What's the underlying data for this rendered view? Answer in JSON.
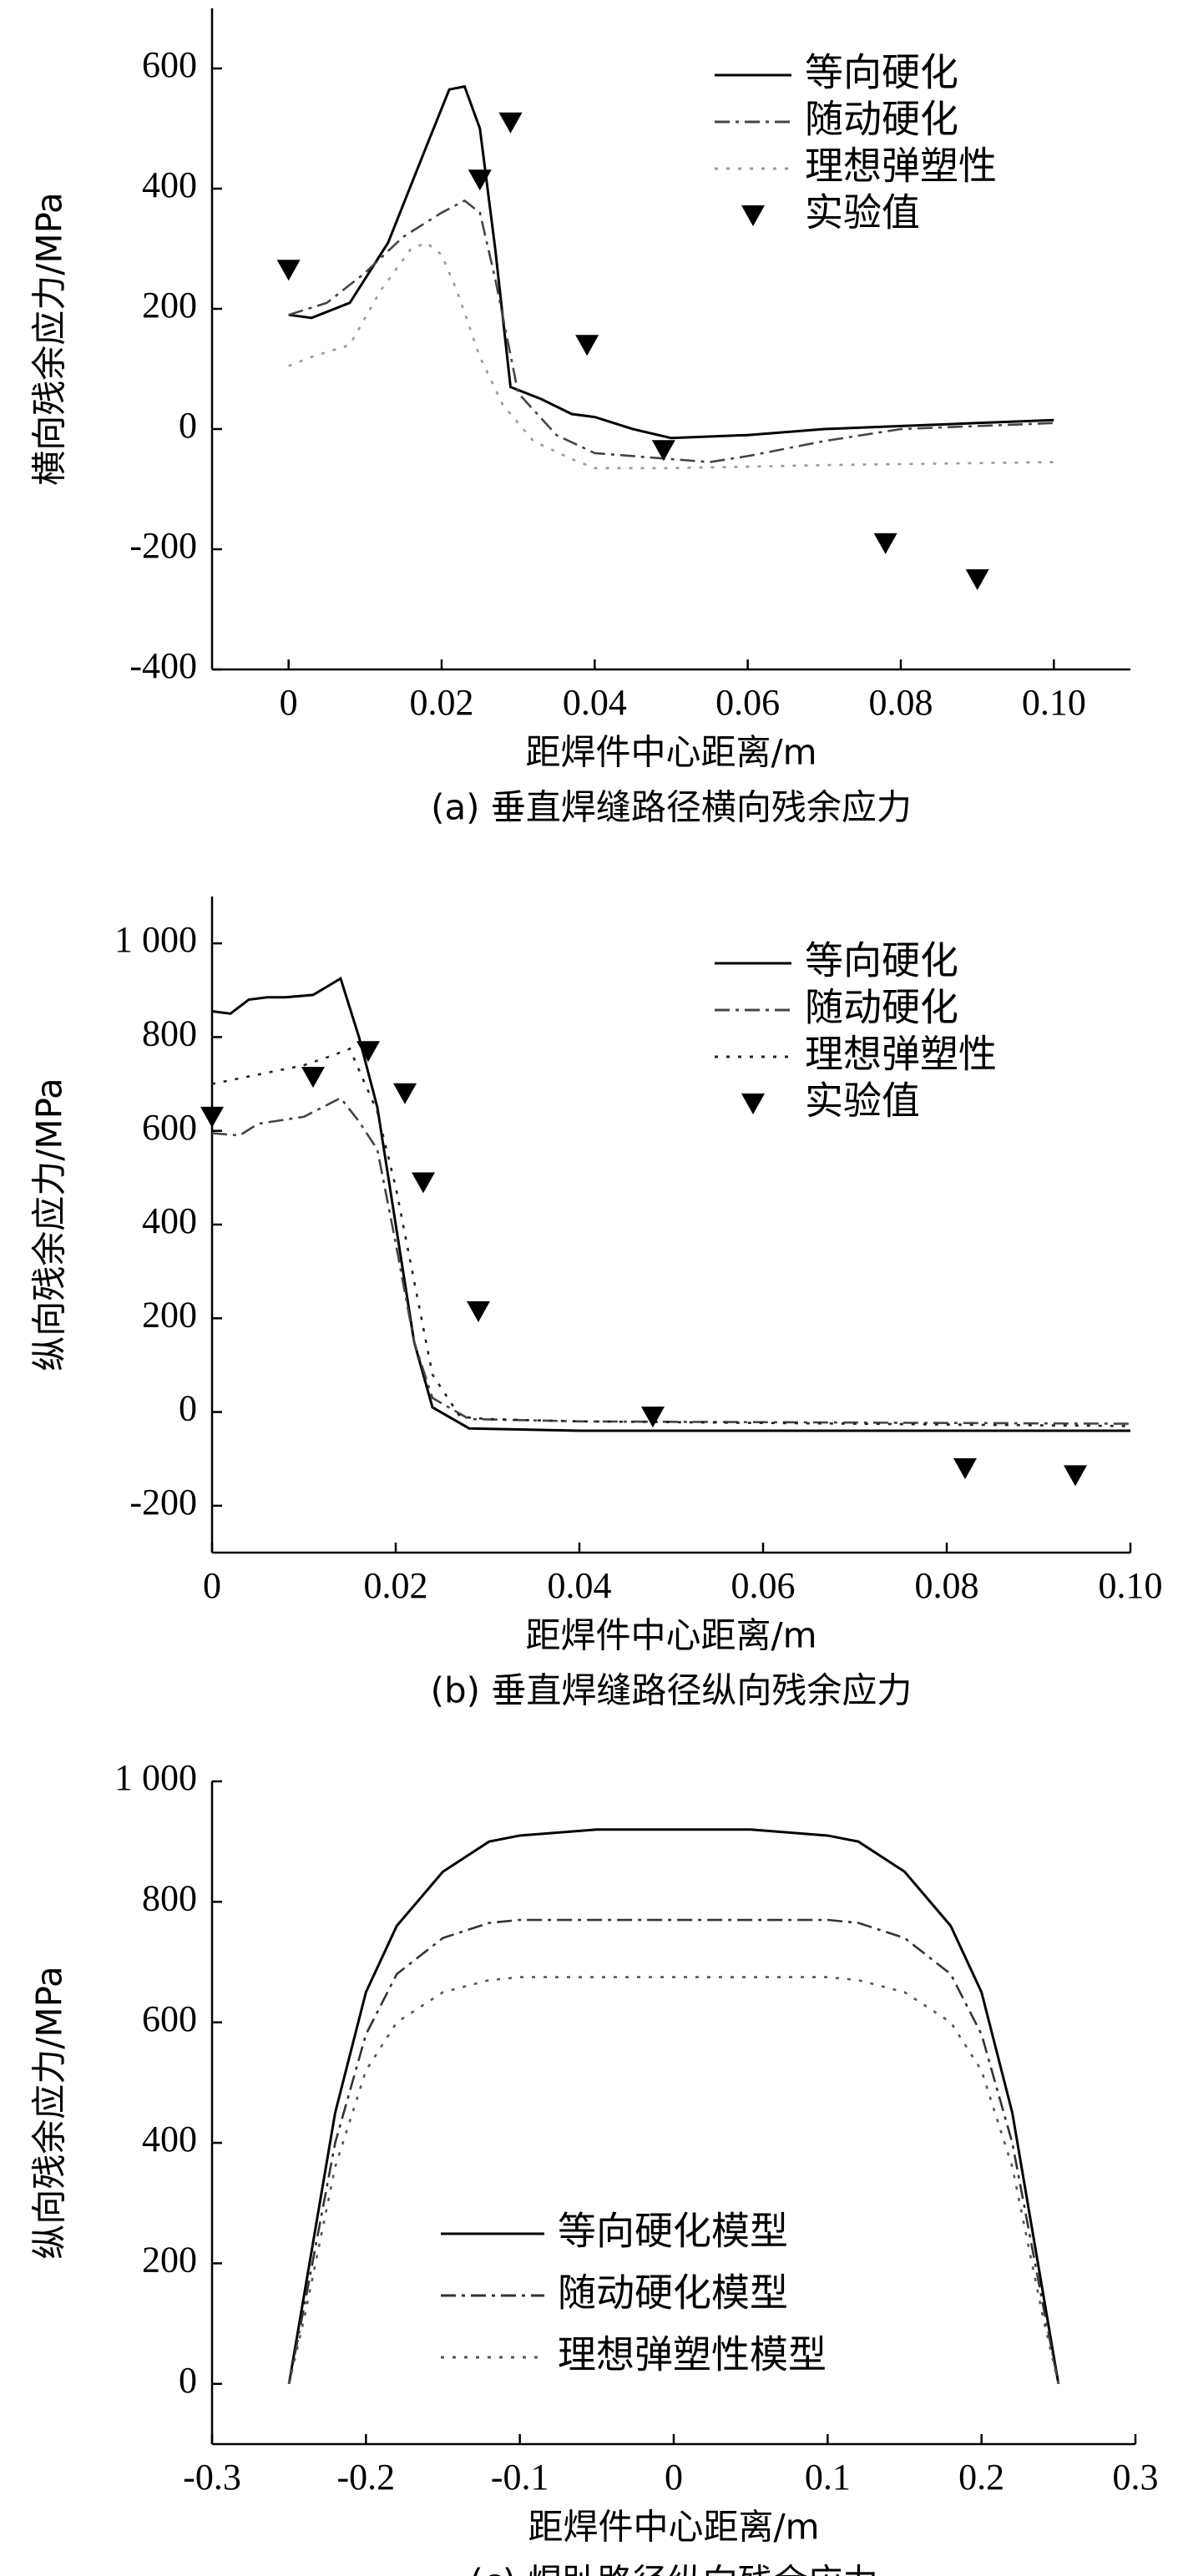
{
  "chart_data": [
    {
      "type": "line",
      "caption": "(a) 垂直焊缝路径横向残余应力",
      "xlabel": "距焊件中心距离/m",
      "ylabel": "横向残余应力/MPa",
      "xlim": [
        -0.01,
        0.11
      ],
      "ylim": [
        -400,
        700
      ],
      "xticks": [
        0,
        0.02,
        0.04,
        0.06,
        0.08,
        {
          "value": 0.1,
          "label": "0.10"
        }
      ],
      "yticks": [
        -400,
        -200,
        0,
        200,
        400,
        600
      ],
      "legend": "upper right",
      "series": [
        {
          "name": "等向硬化",
          "color": "#000000",
          "style": "solid",
          "x": [
            0,
            0.003,
            0.008,
            0.013,
            0.018,
            0.021,
            0.023,
            0.025,
            0.027,
            0.029,
            0.033,
            0.037,
            0.04,
            0.045,
            0.05,
            0.06,
            0.07,
            0.08,
            0.09,
            0.1
          ],
          "values": [
            190,
            185,
            210,
            310,
            470,
            565,
            570,
            500,
            300,
            70,
            50,
            25,
            20,
            0,
            -15,
            -10,
            0,
            5,
            10,
            15
          ]
        },
        {
          "name": "随动硬化",
          "color": "#444444",
          "style": "dashdot",
          "x": [
            0,
            0.005,
            0.01,
            0.015,
            0.02,
            0.023,
            0.025,
            0.027,
            0.03,
            0.035,
            0.04,
            0.05,
            0.055,
            0.06,
            0.07,
            0.08,
            0.09,
            0.1
          ],
          "values": [
            190,
            210,
            260,
            320,
            360,
            380,
            360,
            250,
            60,
            -10,
            -40,
            -50,
            -55,
            -45,
            -20,
            0,
            5,
            10
          ]
        },
        {
          "name": "理想弹塑性",
          "color": "#999999",
          "style": "dotted",
          "x": [
            0,
            0.003,
            0.008,
            0.012,
            0.016,
            0.018,
            0.02,
            0.022,
            0.025,
            0.028,
            0.032,
            0.037,
            0.04,
            0.05,
            0.07,
            0.1
          ],
          "values": [
            105,
            120,
            140,
            230,
            300,
            310,
            290,
            230,
            120,
            40,
            -20,
            -50,
            -65,
            -65,
            -60,
            -55
          ]
        },
        {
          "name": "实验值",
          "color": "#000000",
          "style": "marker",
          "x": [
            0,
            0.025,
            0.029,
            0.039,
            0.049,
            0.078,
            0.09
          ],
          "values": [
            265,
            415,
            510,
            140,
            -35,
            -190,
            -250
          ]
        }
      ]
    },
    {
      "type": "line",
      "caption": "(b) 垂直焊缝路径纵向残余应力",
      "xlabel": "距焊件中心距离/m",
      "ylabel": "纵向残余应力/MPa",
      "xlim": [
        0,
        0.1
      ],
      "ylim": [
        -300,
        1100
      ],
      "xticks": [
        0,
        0.02,
        0.04,
        0.06,
        0.08,
        {
          "value": 0.1,
          "label": "0.10"
        }
      ],
      "yticks": [
        -200,
        0,
        200,
        400,
        600,
        800,
        {
          "value": 1000,
          "label": "1 000"
        }
      ],
      "legend": "upper right",
      "series": [
        {
          "name": "等向硬化",
          "color": "#000000",
          "style": "solid",
          "x": [
            0,
            0.002,
            0.004,
            0.006,
            0.008,
            0.011,
            0.014,
            0.016,
            0.018,
            0.02,
            0.022,
            0.024,
            0.028,
            0.04,
            0.1
          ],
          "values": [
            855,
            850,
            880,
            885,
            885,
            890,
            925,
            800,
            650,
            400,
            150,
            10,
            -35,
            -40,
            -40
          ]
        },
        {
          "name": "随动硬化",
          "color": "#444444",
          "style": "dashdot",
          "x": [
            0,
            0.003,
            0.005,
            0.01,
            0.014,
            0.016,
            0.018,
            0.02,
            0.022,
            0.024,
            0.028,
            0.04,
            0.1
          ],
          "values": [
            595,
            590,
            615,
            630,
            670,
            620,
            560,
            360,
            150,
            30,
            -15,
            -20,
            -25
          ]
        },
        {
          "name": "理想弹塑性",
          "color": "#222222",
          "style": "dotted",
          "x": [
            0,
            0.005,
            0.01,
            0.013,
            0.015,
            0.018,
            0.02,
            0.022,
            0.024,
            0.027,
            0.03,
            0.04,
            0.1
          ],
          "values": [
            700,
            720,
            740,
            760,
            775,
            640,
            480,
            280,
            80,
            -10,
            -15,
            -20,
            -30
          ]
        },
        {
          "name": "实验值",
          "color": "#000000",
          "style": "marker",
          "x": [
            0,
            0.011,
            0.017,
            0.021,
            0.023,
            0.029,
            0.048,
            0.082,
            0.094
          ],
          "values": [
            630,
            715,
            770,
            680,
            490,
            215,
            -10,
            -120,
            -135
          ]
        }
      ]
    },
    {
      "type": "line",
      "caption": "(c) 焊趾路径纵向残余应力",
      "xlabel": "距焊件中心距离/m",
      "ylabel": "纵向残余应力/MPa",
      "xlim": [
        -0.3,
        0.3
      ],
      "ylim": [
        -100,
        1000
      ],
      "xticks": [
        -0.3,
        -0.2,
        -0.1,
        0,
        0.1,
        0.2,
        0.3
      ],
      "yticks": [
        0,
        200,
        400,
        600,
        800,
        {
          "value": 1000,
          "label": "1 000"
        }
      ],
      "legend": "lower center",
      "series": [
        {
          "name": "等向硬化模型",
          "color": "#000000",
          "style": "solid",
          "x": [
            -0.25,
            -0.24,
            -0.22,
            -0.2,
            -0.18,
            -0.15,
            -0.12,
            -0.1,
            -0.05,
            0,
            0.05,
            0.1,
            0.12,
            0.15,
            0.18,
            0.2,
            0.22,
            0.24,
            0.25
          ],
          "values": [
            0,
            150,
            450,
            650,
            760,
            850,
            900,
            910,
            920,
            920,
            920,
            910,
            900,
            850,
            760,
            650,
            450,
            150,
            0
          ]
        },
        {
          "name": "随动硬化模型",
          "color": "#333333",
          "style": "dashdot",
          "x": [
            -0.25,
            -0.24,
            -0.22,
            -0.2,
            -0.18,
            -0.15,
            -0.12,
            -0.1,
            0,
            0.1,
            0.12,
            0.15,
            0.18,
            0.2,
            0.22,
            0.24,
            0.25
          ],
          "values": [
            0,
            130,
            400,
            580,
            680,
            740,
            765,
            770,
            770,
            770,
            765,
            740,
            680,
            580,
            400,
            130,
            0
          ]
        },
        {
          "name": "理想弹塑性模型",
          "color": "#555555",
          "style": "dotted",
          "x": [
            -0.25,
            -0.24,
            -0.22,
            -0.2,
            -0.18,
            -0.15,
            -0.12,
            -0.1,
            0,
            0.1,
            0.12,
            0.15,
            0.18,
            0.2,
            0.22,
            0.24,
            0.25
          ],
          "values": [
            0,
            110,
            360,
            520,
            600,
            650,
            670,
            675,
            675,
            675,
            670,
            650,
            600,
            520,
            360,
            110,
            0
          ]
        }
      ]
    }
  ]
}
